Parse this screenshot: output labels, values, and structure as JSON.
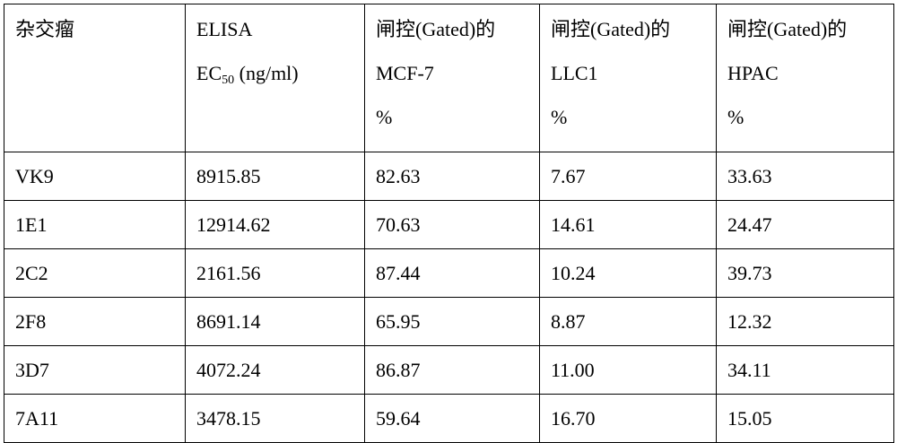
{
  "table": {
    "header": {
      "col0": "杂交瘤",
      "col1": {
        "line1": "ELISA",
        "line2_main": "EC",
        "line2_sub": "50",
        "line2_rest": " (ng/ml)"
      },
      "col2": {
        "line1": "闸控(Gated)的",
        "line2": "MCF-7",
        "line3": "%"
      },
      "col3": {
        "line1": "闸控(Gated)的",
        "line2": "LLC1",
        "line3": "%"
      },
      "col4": {
        "line1": "闸控(Gated)的",
        "line2": "HPAC",
        "line3": "%"
      }
    },
    "rows": [
      [
        "VK9",
        "8915.85",
        "82.63",
        "7.67",
        "33.63"
      ],
      [
        "1E1",
        "12914.62",
        "70.63",
        "14.61",
        "24.47"
      ],
      [
        "2C2",
        "2161.56",
        "87.44",
        "10.24",
        "39.73"
      ],
      [
        "2F8",
        "8691.14",
        "65.95",
        "8.87",
        "12.32"
      ],
      [
        "3D7",
        "4072.24",
        "86.87",
        "11.00",
        "34.11"
      ],
      [
        "7A11",
        "3478.15",
        "59.64",
        "16.70",
        "15.05"
      ]
    ]
  }
}
